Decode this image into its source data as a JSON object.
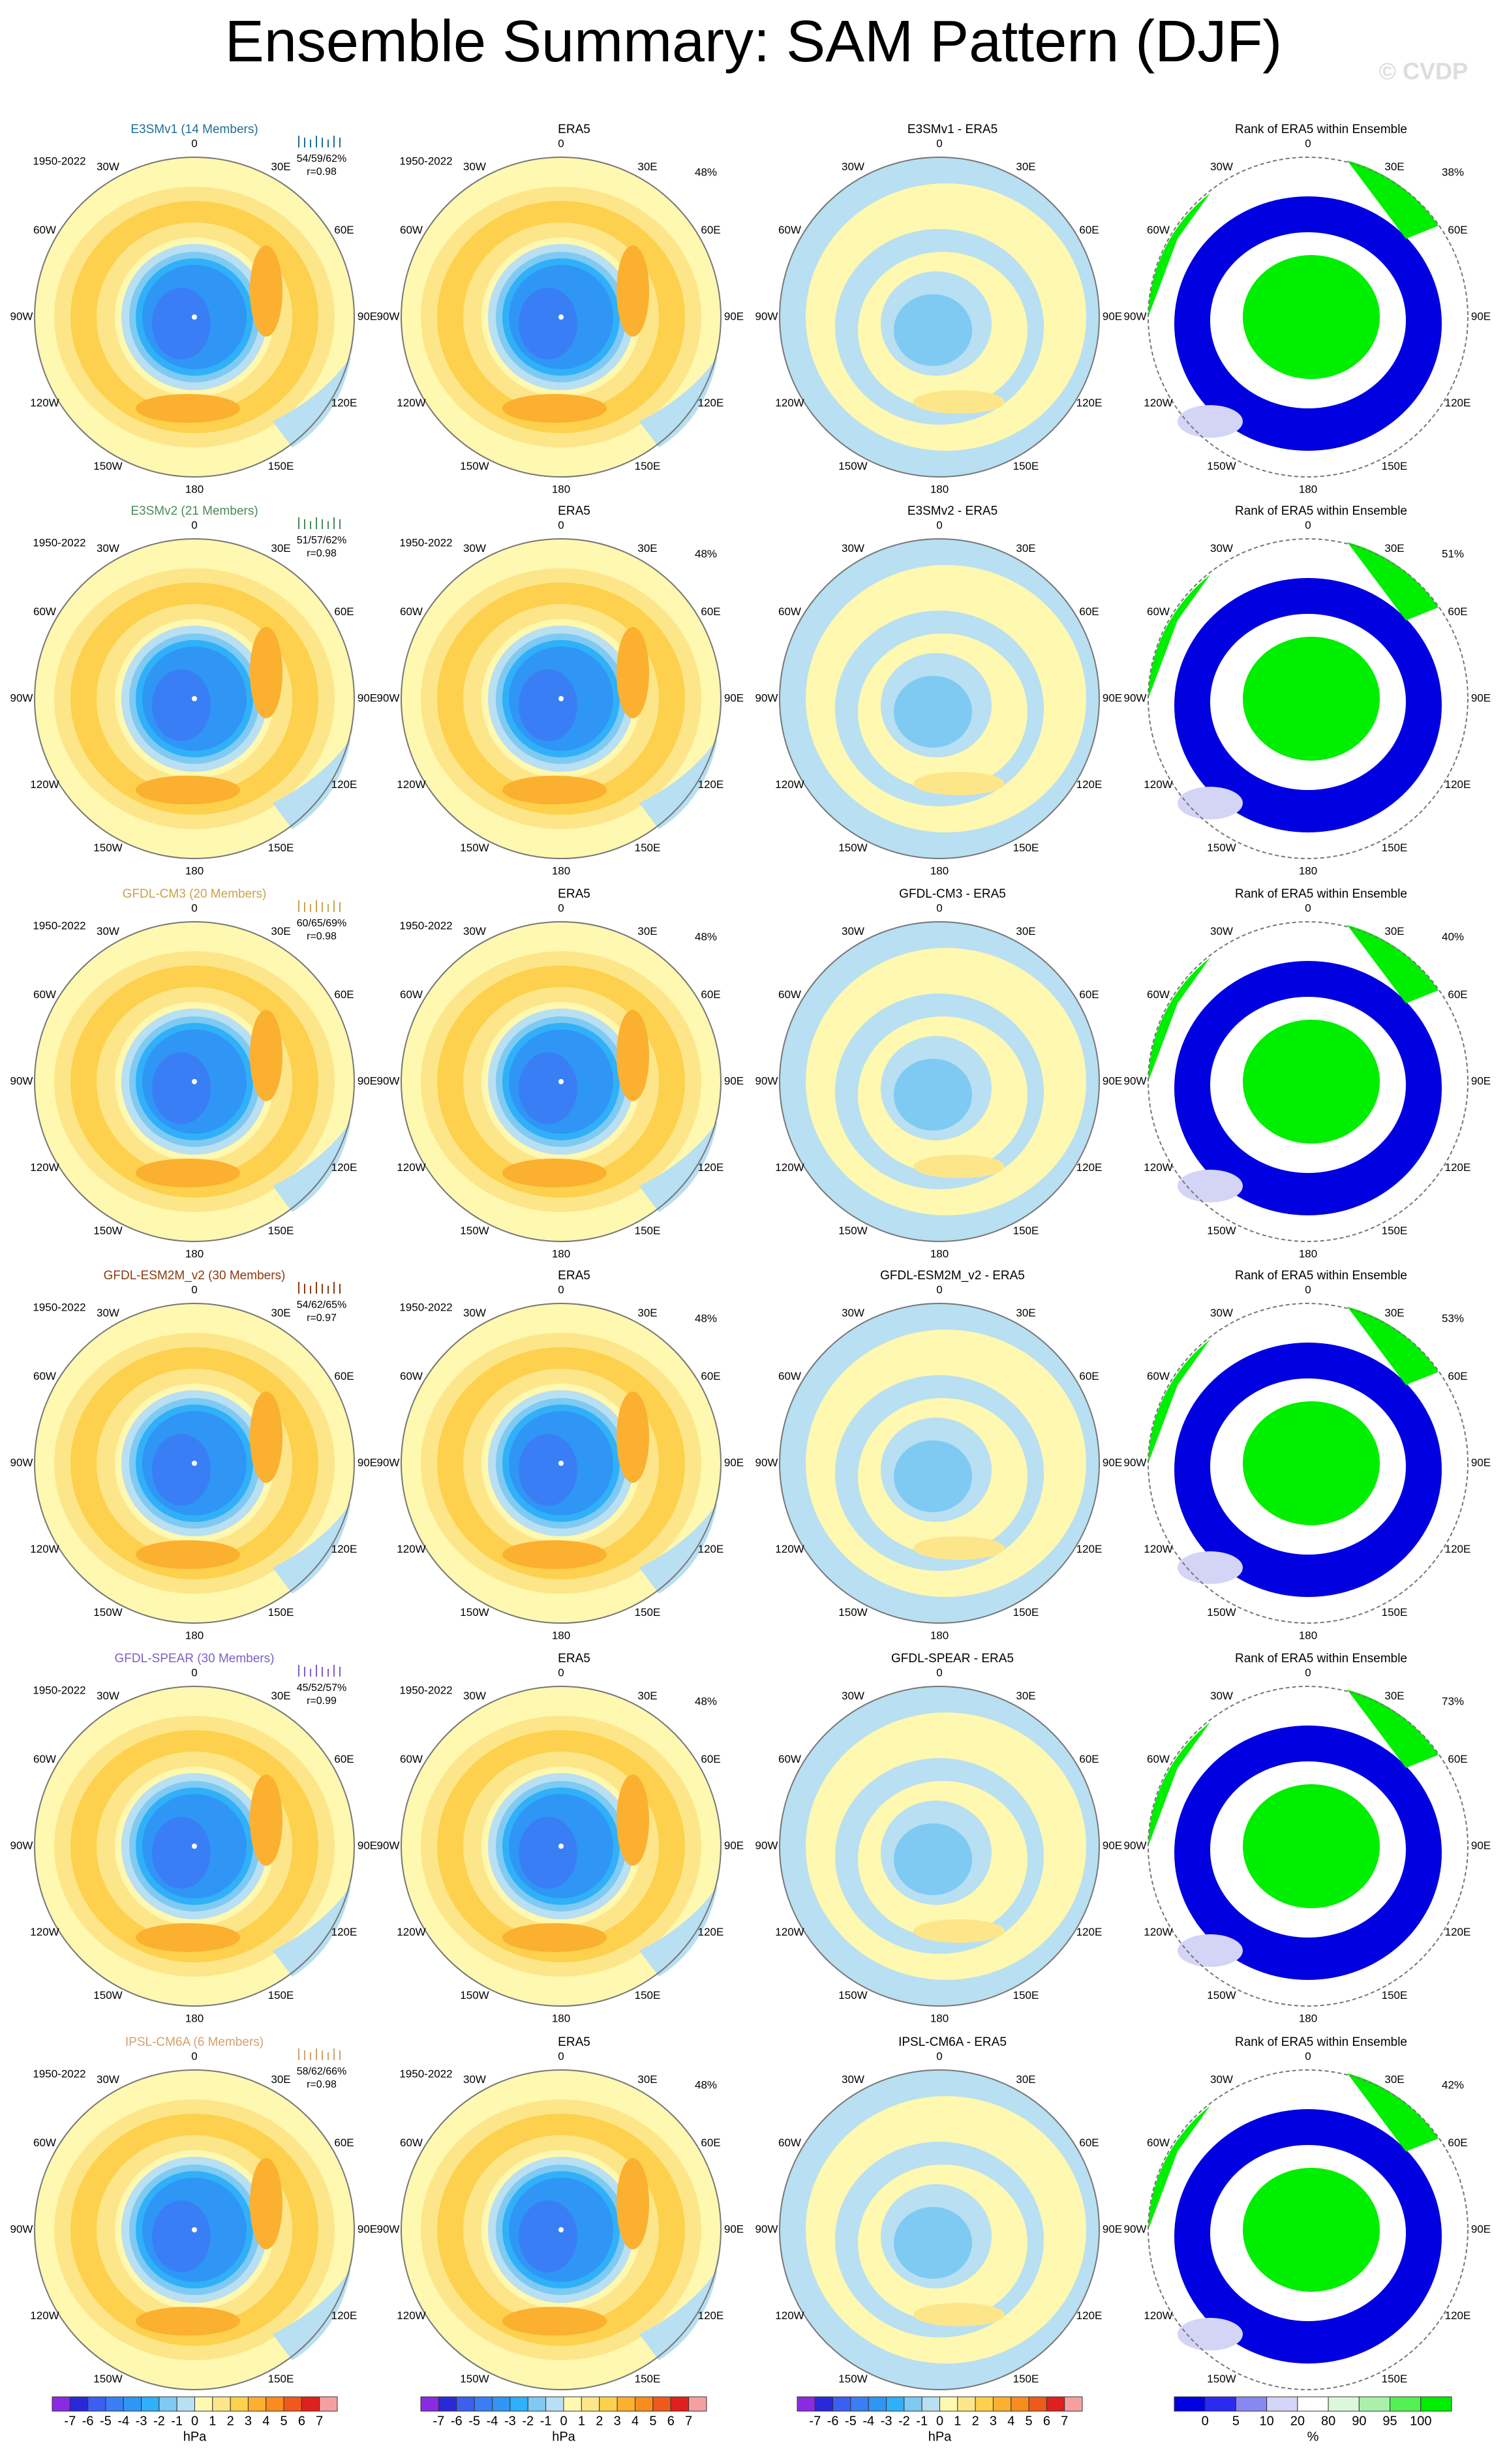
{
  "title": "Ensemble Summary: SAM Pattern (DJF)",
  "watermark": "© CVDP",
  "lon_labels": [
    "0",
    "30E",
    "60E",
    "90E",
    "120E",
    "150E",
    "180",
    "150W",
    "120W",
    "90W",
    "60W",
    "30W"
  ],
  "rows": [
    {
      "model": "E3SMv1 (14 Members)",
      "model_color": "#1f6f96",
      "period": "1950-2022",
      "pct": "54/59/62%",
      "r": "r=0.98",
      "era5_title": "ERA5",
      "era5_period": "1950-2022",
      "era5_pct": "48%",
      "diff_title": "E3SMv1 - ERA5",
      "rank_title": "Rank of ERA5 within Ensemble",
      "rank_pct": "38%"
    },
    {
      "model": "E3SMv2 (21 Members)",
      "model_color": "#4a8a5a",
      "period": "1950-2022",
      "pct": "51/57/62%",
      "r": "r=0.98",
      "era5_title": "ERA5",
      "era5_period": "1950-2022",
      "era5_pct": "48%",
      "diff_title": "E3SMv2 - ERA5",
      "rank_title": "Rank of ERA5 within Ensemble",
      "rank_pct": "51%"
    },
    {
      "model": "GFDL-CM3 (20 Members)",
      "model_color": "#c9a24e",
      "period": "1950-2022",
      "pct": "60/65/69%",
      "r": "r=0.98",
      "era5_title": "ERA5",
      "era5_period": "1950-2022",
      "era5_pct": "48%",
      "diff_title": "GFDL-CM3 - ERA5",
      "rank_title": "Rank of ERA5 within Ensemble",
      "rank_pct": "40%"
    },
    {
      "model": "GFDL-ESM2M_v2 (30 Members)",
      "model_color": "#8b3a10",
      "period": "1950-2022",
      "pct": "54/62/65%",
      "r": "r=0.97",
      "era5_title": "ERA5",
      "era5_period": "1950-2022",
      "era5_pct": "48%",
      "diff_title": "GFDL-ESM2M_v2 - ERA5",
      "rank_title": "Rank of ERA5 within Ensemble",
      "rank_pct": "53%"
    },
    {
      "model": "GFDL-SPEAR (30 Members)",
      "model_color": "#7b5fc9",
      "period": "1950-2022",
      "pct": "45/52/57%",
      "r": "r=0.99",
      "era5_title": "ERA5",
      "era5_period": "1950-2022",
      "era5_pct": "48%",
      "diff_title": "GFDL-SPEAR - ERA5",
      "rank_title": "Rank of ERA5 within Ensemble",
      "rank_pct": "73%"
    },
    {
      "model": "IPSL-CM6A (6 Members)",
      "model_color": "#d4a070",
      "period": "1950-2022",
      "pct": "58/62/66%",
      "r": "r=0.98",
      "era5_title": "ERA5",
      "era5_period": "1950-2022",
      "era5_pct": "48%",
      "diff_title": "IPSL-CM6A - ERA5",
      "rank_title": "Rank of ERA5 within Ensemble",
      "rank_pct": "42%"
    }
  ],
  "colorbars": [
    {
      "labels": [
        -7,
        -6,
        -5,
        -4,
        -3,
        -2,
        -1,
        0,
        1,
        2,
        3,
        4,
        5,
        6,
        7
      ],
      "unit": "hPa",
      "colors": [
        "#8a2be2",
        "#2828d8",
        "#3c5ff0",
        "#3a7ef5",
        "#2f96f5",
        "#30b0f8",
        "#7ecaf2",
        "#b8dff2",
        "#fff8b0",
        "#fde68a",
        "#fdd14d",
        "#fbb030",
        "#f98c1f",
        "#ef5a1c",
        "#e0201e",
        "#f5a0a0"
      ]
    },
    {
      "labels": [
        -7,
        -6,
        -5,
        -4,
        -3,
        -2,
        -1,
        0,
        1,
        2,
        3,
        4,
        5,
        6,
        7
      ],
      "unit": "hPa",
      "colors": [
        "#8a2be2",
        "#2828d8",
        "#3c5ff0",
        "#3a7ef5",
        "#2f96f5",
        "#30b0f8",
        "#7ecaf2",
        "#b8dff2",
        "#fff8b0",
        "#fde68a",
        "#fdd14d",
        "#fbb030",
        "#f98c1f",
        "#ef5a1c",
        "#e0201e",
        "#f5a0a0"
      ]
    },
    {
      "labels": [
        -7,
        -6,
        -5,
        -4,
        -3,
        -2,
        -1,
        0,
        1,
        2,
        3,
        4,
        5,
        6,
        7
      ],
      "unit": "hPa",
      "colors": [
        "#8a2be2",
        "#2828d8",
        "#3c5ff0",
        "#3a7ef5",
        "#2f96f5",
        "#30b0f8",
        "#7ecaf2",
        "#b8dff2",
        "#fff8b0",
        "#fde68a",
        "#fdd14d",
        "#fbb030",
        "#f98c1f",
        "#ef5a1c",
        "#e0201e",
        "#f5a0a0"
      ]
    },
    {
      "labels": [
        0,
        5,
        10,
        20,
        80,
        90,
        95,
        100
      ],
      "unit": "%",
      "colors": [
        "#0000e0",
        "#2a2af0",
        "#8888f0",
        "#d4d4f6",
        "#ffffff",
        "#dcf8dc",
        "#aaf0aa",
        "#55f055",
        "#00ee00"
      ]
    }
  ]
}
